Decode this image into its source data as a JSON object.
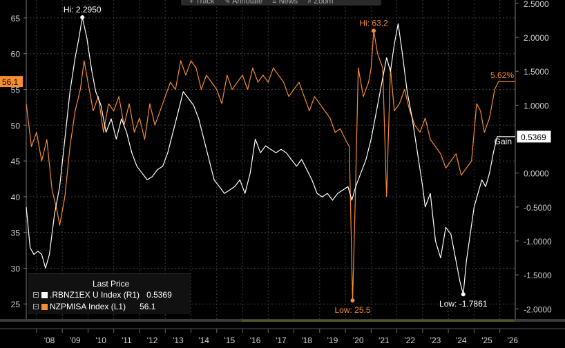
{
  "toolbar": [
    {
      "icon": "plus-icon",
      "glyph": "+",
      "label": "Track"
    },
    {
      "icon": "pencil-icon",
      "glyph": "✎",
      "label": "Annotate"
    },
    {
      "icon": "menu-icon",
      "glyph": "≡",
      "label": "News"
    },
    {
      "icon": "magnifier-icon",
      "glyph": "⌕",
      "label": "Zoom"
    }
  ],
  "legend": {
    "title": "Last Price",
    "rows": [
      {
        "name": ".RBNZ1EX U Index",
        "axis": "(R1)",
        "value": "0.5369",
        "color": "#ffffff"
      },
      {
        "name": "NZPMISA Index",
        "axis": "(L1)",
        "value": "56.1",
        "color": "#f68d2e"
      }
    ]
  },
  "chart_data": {
    "type": "line",
    "x_range": [
      2007.6,
      2026.6
    ],
    "x_ticks": [
      "'08",
      "'09",
      "'10",
      "'11",
      "'12",
      "'13",
      "'14",
      "'15",
      "'16",
      "'17",
      "'18",
      "'19",
      "'20",
      "'21",
      "'22",
      "'23",
      "'24",
      "'25",
      "'26"
    ],
    "left_axis": {
      "ylim": [
        22.9,
        67.5
      ],
      "ticks": [
        25,
        30,
        35,
        40,
        45,
        50,
        55,
        60,
        65
      ]
    },
    "right_axis": {
      "ylim": [
        -2.15,
        2.55
      ],
      "ticks": [
        "2.5000",
        "2.0000",
        "1.5000",
        "1.0000",
        "0.5000",
        "0.0000",
        "-0.5000",
        "-1.0000",
        "-1.5000",
        "-2.0000"
      ]
    },
    "colors": {
      "rbnz": "#ffffff",
      "pmi": "#f68d2e",
      "grid": "#3d3d3d",
      "axis_text": "#cfcfcf"
    },
    "series": [
      {
        "name": "NZPMISA Index",
        "axis": "left",
        "color": "#f68d2e",
        "points": [
          [
            2007.6,
            53
          ],
          [
            2007.8,
            47
          ],
          [
            2008.0,
            49
          ],
          [
            2008.2,
            45
          ],
          [
            2008.4,
            48
          ],
          [
            2008.6,
            41
          ],
          [
            2008.8,
            38
          ],
          [
            2008.9,
            36
          ],
          [
            2009.1,
            40
          ],
          [
            2009.3,
            47
          ],
          [
            2009.5,
            52
          ],
          [
            2009.7,
            55
          ],
          [
            2009.85,
            59
          ],
          [
            2010.0,
            56
          ],
          [
            2010.2,
            52
          ],
          [
            2010.4,
            54
          ],
          [
            2010.6,
            49
          ],
          [
            2010.8,
            53
          ],
          [
            2011.0,
            52
          ],
          [
            2011.2,
            54
          ],
          [
            2011.4,
            50
          ],
          [
            2011.6,
            53
          ],
          [
            2011.8,
            49
          ],
          [
            2012.0,
            51
          ],
          [
            2012.2,
            48
          ],
          [
            2012.4,
            53
          ],
          [
            2012.6,
            50
          ],
          [
            2012.8,
            52
          ],
          [
            2013.0,
            54
          ],
          [
            2013.2,
            56
          ],
          [
            2013.4,
            55
          ],
          [
            2013.6,
            59
          ],
          [
            2013.8,
            57
          ],
          [
            2014.0,
            59
          ],
          [
            2014.2,
            58
          ],
          [
            2014.4,
            55
          ],
          [
            2014.6,
            57
          ],
          [
            2014.8,
            56
          ],
          [
            2015.0,
            55
          ],
          [
            2015.2,
            53
          ],
          [
            2015.4,
            57
          ],
          [
            2015.6,
            55
          ],
          [
            2015.8,
            56
          ],
          [
            2016.0,
            57
          ],
          [
            2016.2,
            55
          ],
          [
            2016.4,
            58
          ],
          [
            2016.6,
            56
          ],
          [
            2016.8,
            57
          ],
          [
            2017.0,
            56
          ],
          [
            2017.2,
            58
          ],
          [
            2017.4,
            57
          ],
          [
            2017.6,
            56
          ],
          [
            2017.8,
            54
          ],
          [
            2018.0,
            55
          ],
          [
            2018.2,
            56
          ],
          [
            2018.4,
            54
          ],
          [
            2018.6,
            52
          ],
          [
            2018.8,
            54
          ],
          [
            2019.0,
            53
          ],
          [
            2019.2,
            52
          ],
          [
            2019.4,
            51
          ],
          [
            2019.6,
            49
          ],
          [
            2019.8,
            49.5
          ],
          [
            2020.0,
            48
          ],
          [
            2020.15,
            47
          ],
          [
            2020.28,
            25.5
          ],
          [
            2020.38,
            39
          ],
          [
            2020.5,
            58
          ],
          [
            2020.7,
            54
          ],
          [
            2020.9,
            56
          ],
          [
            2021.0,
            58
          ],
          [
            2021.1,
            63.2
          ],
          [
            2021.25,
            60
          ],
          [
            2021.45,
            58
          ],
          [
            2021.6,
            40
          ],
          [
            2021.75,
            58
          ],
          [
            2021.9,
            52
          ],
          [
            2022.1,
            53
          ],
          [
            2022.3,
            55
          ],
          [
            2022.5,
            52
          ],
          [
            2022.7,
            50
          ],
          [
            2022.9,
            49
          ],
          [
            2023.1,
            51
          ],
          [
            2023.3,
            48
          ],
          [
            2023.5,
            47
          ],
          [
            2023.7,
            46
          ],
          [
            2023.9,
            44
          ],
          [
            2024.1,
            45
          ],
          [
            2024.3,
            46
          ],
          [
            2024.5,
            43
          ],
          [
            2024.7,
            44
          ],
          [
            2024.9,
            45
          ],
          [
            2025.1,
            53
          ],
          [
            2025.25,
            52
          ],
          [
            2025.4,
            49
          ],
          [
            2025.6,
            51
          ],
          [
            2025.8,
            55
          ],
          [
            2025.95,
            56.1
          ],
          [
            2026.6,
            56.1
          ]
        ]
      },
      {
        "name": ".RBNZ1EX U Index",
        "axis": "right",
        "color": "#ffffff",
        "points": [
          [
            2007.6,
            -0.5
          ],
          [
            2007.75,
            -1.1
          ],
          [
            2007.9,
            -1.2
          ],
          [
            2008.05,
            -1.15
          ],
          [
            2008.2,
            -1.2
          ],
          [
            2008.35,
            -1.4
          ],
          [
            2008.5,
            -1.2
          ],
          [
            2008.7,
            -0.6
          ],
          [
            2008.9,
            -0.2
          ],
          [
            2009.1,
            0.5
          ],
          [
            2009.3,
            1.2
          ],
          [
            2009.5,
            1.7
          ],
          [
            2009.65,
            2.0
          ],
          [
            2009.78,
            2.295
          ],
          [
            2009.95,
            2.0
          ],
          [
            2010.15,
            1.5
          ],
          [
            2010.3,
            1.2
          ],
          [
            2010.5,
            1.0
          ],
          [
            2010.7,
            0.6
          ],
          [
            2010.9,
            0.8
          ],
          [
            2011.1,
            0.5
          ],
          [
            2011.3,
            0.8
          ],
          [
            2011.5,
            0.6
          ],
          [
            2011.7,
            0.3
          ],
          [
            2011.9,
            0.1
          ],
          [
            2012.1,
            0.0
          ],
          [
            2012.3,
            -0.1
          ],
          [
            2012.5,
            -0.05
          ],
          [
            2012.7,
            0.05
          ],
          [
            2012.9,
            0.1
          ],
          [
            2013.1,
            0.3
          ],
          [
            2013.3,
            0.6
          ],
          [
            2013.5,
            0.9
          ],
          [
            2013.7,
            1.2
          ],
          [
            2013.9,
            1.1
          ],
          [
            2014.1,
            1.0
          ],
          [
            2014.3,
            0.8
          ],
          [
            2014.5,
            0.5
          ],
          [
            2014.7,
            0.2
          ],
          [
            2014.9,
            -0.1
          ],
          [
            2015.1,
            -0.2
          ],
          [
            2015.3,
            -0.3
          ],
          [
            2015.5,
            -0.25
          ],
          [
            2015.7,
            -0.2
          ],
          [
            2015.9,
            -0.1
          ],
          [
            2016.1,
            -0.3
          ],
          [
            2016.3,
            0.0
          ],
          [
            2016.5,
            0.5
          ],
          [
            2016.7,
            0.3
          ],
          [
            2016.9,
            0.4
          ],
          [
            2017.1,
            0.35
          ],
          [
            2017.3,
            0.3
          ],
          [
            2017.5,
            0.35
          ],
          [
            2017.7,
            0.3
          ],
          [
            2017.9,
            0.2
          ],
          [
            2018.1,
            0.1
          ],
          [
            2018.3,
            0.2
          ],
          [
            2018.5,
            0.05
          ],
          [
            2018.7,
            -0.1
          ],
          [
            2018.9,
            -0.3
          ],
          [
            2019.1,
            -0.35
          ],
          [
            2019.3,
            -0.3
          ],
          [
            2019.5,
            -0.4
          ],
          [
            2019.7,
            -0.3
          ],
          [
            2019.9,
            -0.25
          ],
          [
            2020.1,
            -0.2
          ],
          [
            2020.25,
            -0.4
          ],
          [
            2020.4,
            -0.2
          ],
          [
            2020.6,
            0.0
          ],
          [
            2020.8,
            0.2
          ],
          [
            2021.0,
            0.5
          ],
          [
            2021.2,
            0.9
          ],
          [
            2021.4,
            1.3
          ],
          [
            2021.6,
            1.7
          ],
          [
            2021.75,
            1.5
          ],
          [
            2021.9,
            1.9
          ],
          [
            2022.0,
            2.1
          ],
          [
            2022.05,
            2.2
          ],
          [
            2022.2,
            1.8
          ],
          [
            2022.4,
            1.2
          ],
          [
            2022.6,
            0.8
          ],
          [
            2022.8,
            0.3
          ],
          [
            2023.0,
            -0.2
          ],
          [
            2023.1,
            -0.5
          ],
          [
            2023.3,
            -0.3
          ],
          [
            2023.5,
            -1.0
          ],
          [
            2023.7,
            -1.25
          ],
          [
            2023.9,
            -0.8
          ],
          [
            2024.1,
            -0.9
          ],
          [
            2024.3,
            -1.3
          ],
          [
            2024.45,
            -1.6
          ],
          [
            2024.58,
            -1.7861
          ],
          [
            2024.7,
            -1.3
          ],
          [
            2024.85,
            -0.9
          ],
          [
            2025.0,
            -0.5
          ],
          [
            2025.15,
            -0.3
          ],
          [
            2025.3,
            -0.1
          ],
          [
            2025.45,
            -0.2
          ],
          [
            2025.6,
            0.0
          ],
          [
            2025.75,
            0.3
          ],
          [
            2025.9,
            0.5369
          ],
          [
            2026.6,
            0.5369
          ]
        ]
      }
    ],
    "annotations": [
      {
        "series": ".RBNZ1EX U Index",
        "x": 2009.78,
        "y": 2.295,
        "text": "Hi: 2.2950"
      },
      {
        "series": ".RBNZ1EX U Index",
        "x": 2024.58,
        "y": -1.7861,
        "text": "Low: -1.7861"
      },
      {
        "series": "NZPMISA Index",
        "x": 2021.1,
        "y": 63.2,
        "text": "Hi: 63.2"
      },
      {
        "series": "NZPMISA Index",
        "x": 2020.28,
        "y": 25.5,
        "text": "Low: 25.5"
      },
      {
        "series": "NZPMISA Index",
        "x": 2026.6,
        "y": 56.1,
        "text": "5.62%"
      },
      {
        "series": ".RBNZ1EX U Index",
        "x": 2026.6,
        "y": 0.5369,
        "text": "Gain"
      }
    ],
    "last_price_tags": [
      {
        "axis": "left",
        "value": 56.1,
        "text": "56.1"
      },
      {
        "axis": "right",
        "value": 0.5369,
        "text": "0.5369"
      }
    ]
  }
}
